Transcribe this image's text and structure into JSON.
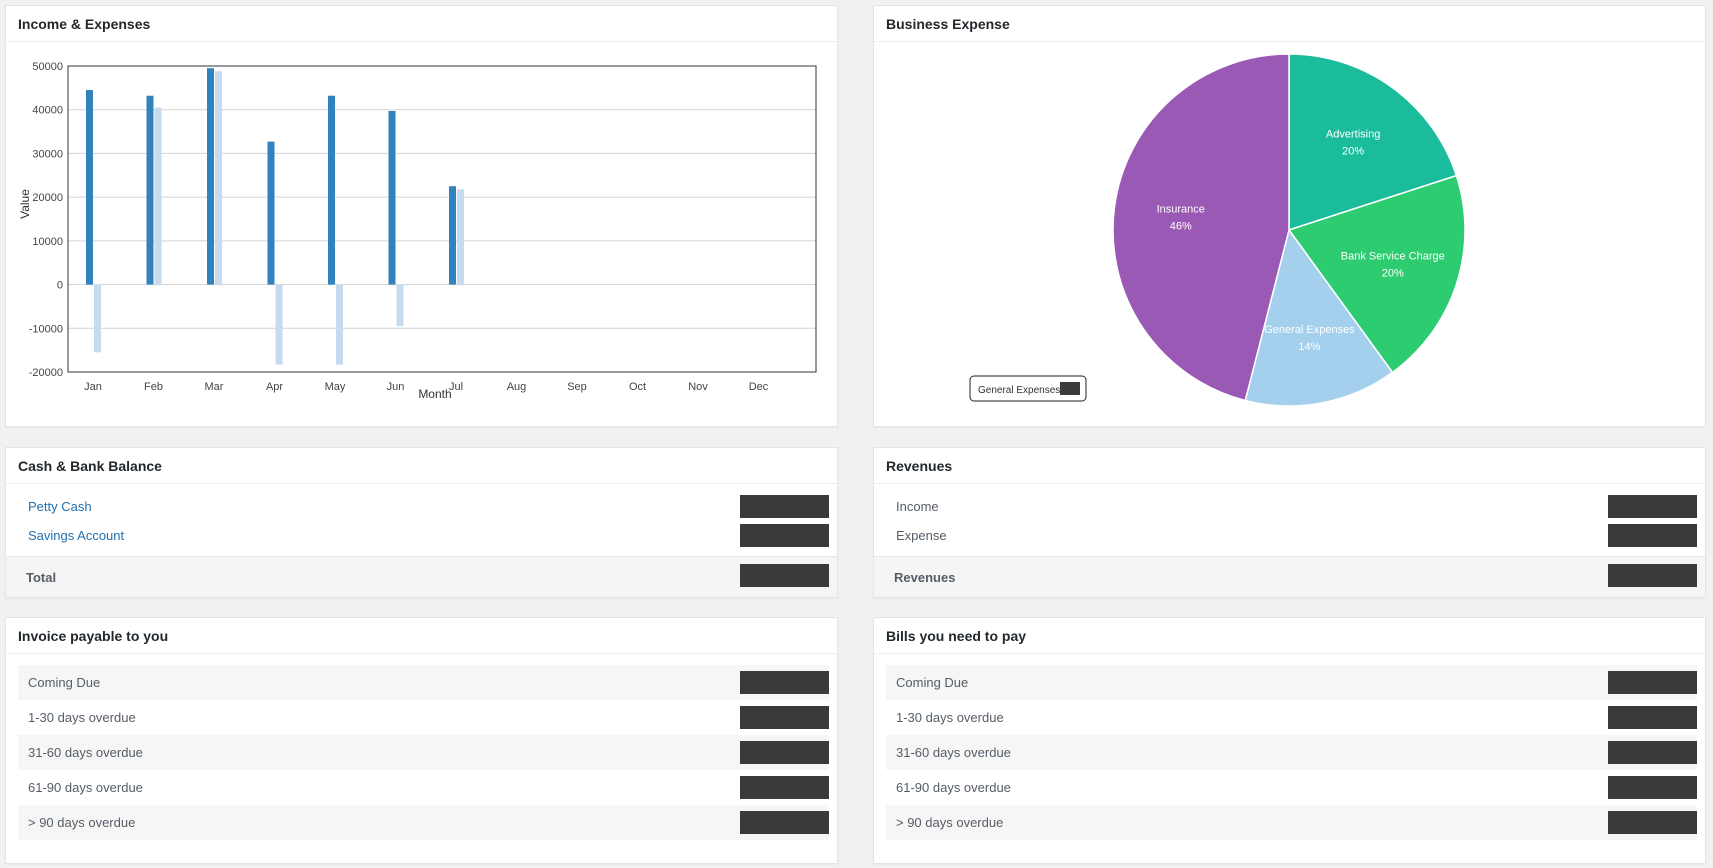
{
  "income_expenses": {
    "title": "Income & Expenses",
    "chart_data": {
      "type": "bar",
      "categories": [
        "Jan",
        "Feb",
        "Mar",
        "Apr",
        "May",
        "Jun",
        "Jul",
        "Aug",
        "Sep",
        "Oct",
        "Nov",
        "Dec"
      ],
      "series": [
        {
          "values": [
            44500,
            43200,
            49500,
            32700,
            43200,
            39700,
            22500,
            null,
            null,
            null,
            null,
            null
          ]
        },
        {
          "values": [
            -15500,
            40500,
            48800,
            -18300,
            -18300,
            -9500,
            21800,
            null,
            null,
            null,
            null,
            null
          ]
        }
      ],
      "ylim": [
        -20000,
        50000
      ],
      "yticks": [
        50000,
        40000,
        30000,
        20000,
        10000,
        0,
        -10000,
        -20000
      ],
      "xlabel": "Month",
      "ylabel": "Value",
      "grid": true
    }
  },
  "business_expense": {
    "title": "Business Expense",
    "chart_data": {
      "type": "pie",
      "slices": [
        {
          "label": "Advertising",
          "value": 20,
          "pct_label": "20%"
        },
        {
          "label": "Bank Service Charge",
          "value": 20,
          "pct_label": "20%"
        },
        {
          "label": "General Expenses",
          "value": 14,
          "pct_label": "14%"
        },
        {
          "label": "Insurance",
          "value": 46,
          "pct_label": "46%"
        }
      ],
      "legend": {
        "label": "General Expenses",
        "placement": "bottom-left"
      }
    }
  },
  "cash_bank": {
    "title": "Cash & Bank Balance",
    "accounts": [
      {
        "label": "Petty Cash"
      },
      {
        "label": "Savings Account"
      }
    ],
    "total_label": "Total"
  },
  "revenues": {
    "title": "Revenues",
    "items": [
      {
        "label": "Income"
      },
      {
        "label": "Expense"
      }
    ],
    "total_label": "Revenues"
  },
  "invoice_payable": {
    "title": "Invoice payable to you",
    "rows": [
      {
        "label": "Coming Due"
      },
      {
        "label": "1-30 days overdue"
      },
      {
        "label": "31-60 days overdue"
      },
      {
        "label": "61-90 days overdue"
      },
      {
        "label": "> 90 days overdue"
      }
    ]
  },
  "bills_to_pay": {
    "title": "Bills you need to pay",
    "rows": [
      {
        "label": "Coming Due"
      },
      {
        "label": "1-30 days overdue"
      },
      {
        "label": "31-60 days overdue"
      },
      {
        "label": "61-90 days overdue"
      },
      {
        "label": "> 90 days overdue"
      }
    ]
  },
  "colors": {
    "income_bar": "#3182bd",
    "expense_bar": "#c6dbef",
    "advertising": "#1abc9c",
    "bank_service_charge": "#2ecc71",
    "general_expenses": "#a4d0ee",
    "insurance": "#9b59b6",
    "redacted": "#3a3a3a",
    "link": "#2271b1"
  }
}
